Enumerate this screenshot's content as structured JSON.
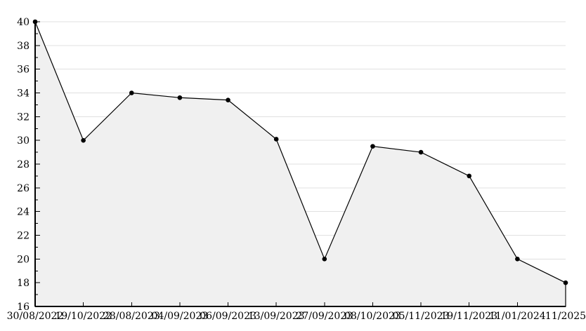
{
  "chart_data": {
    "type": "area",
    "title": "",
    "xlabel": "",
    "ylabel": "",
    "x_labels": [
      "30/08/2022",
      "19/10/2022",
      "28/08/2023",
      "04/09/2023",
      "06/09/2023",
      "13/09/2023",
      "27/09/2023",
      "08/10/2023",
      "05/11/2023",
      "19/11/2023",
      "11/01/2024",
      "11/2025"
    ],
    "values": [
      40,
      30,
      34,
      33.6,
      33.4,
      30.1,
      20,
      29.5,
      29,
      27,
      20,
      18
    ],
    "ylim": [
      16,
      40
    ],
    "yticks": [
      16,
      18,
      20,
      22,
      24,
      26,
      28,
      30,
      32,
      34,
      36,
      38,
      40
    ],
    "y_minor_step": 1,
    "grid": true,
    "legend": false,
    "marker": "filled-circle",
    "colors": {
      "line": "#000000",
      "marker": "#000000",
      "fill": "#f0f0f0",
      "grid": "#e0e0e0",
      "axis": "#000000",
      "label": "#000000",
      "background": "#ffffff"
    }
  }
}
